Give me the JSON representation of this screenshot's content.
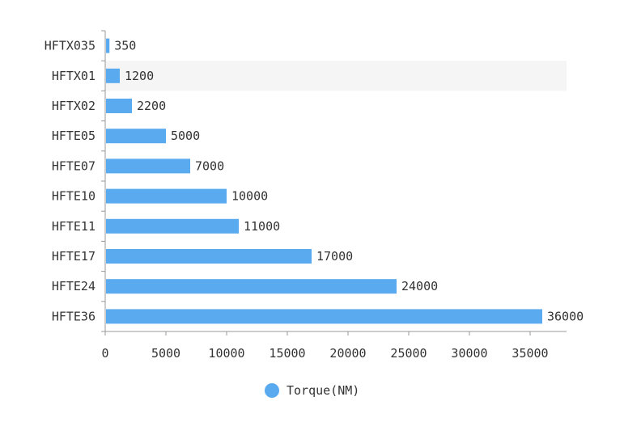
{
  "chart_data": {
    "type": "bar",
    "orientation": "horizontal",
    "categories": [
      "HFTX035",
      "HFTX01",
      "HFTX02",
      "HFTE05",
      "HFTE07",
      "HFTE10",
      "HFTE11",
      "HFTE17",
      "HFTE24",
      "HFTE36"
    ],
    "series": [
      {
        "name": "Torque(NM)",
        "values": [
          350,
          1200,
          2200,
          5000,
          7000,
          10000,
          11000,
          17000,
          24000,
          36000
        ],
        "color": "#5aaaf0"
      }
    ],
    "x_ticks": [
      "0",
      "5000",
      "10000",
      "15000",
      "20000",
      "25000",
      "30000",
      "35000"
    ],
    "xlim": [
      0,
      38000
    ],
    "highlighted_category": "HFTX01",
    "highlight_color": "#f5f5f5",
    "legend": {
      "position": "bottom-center",
      "label": "Torque(NM)"
    },
    "grid": false,
    "value_labels": true
  }
}
